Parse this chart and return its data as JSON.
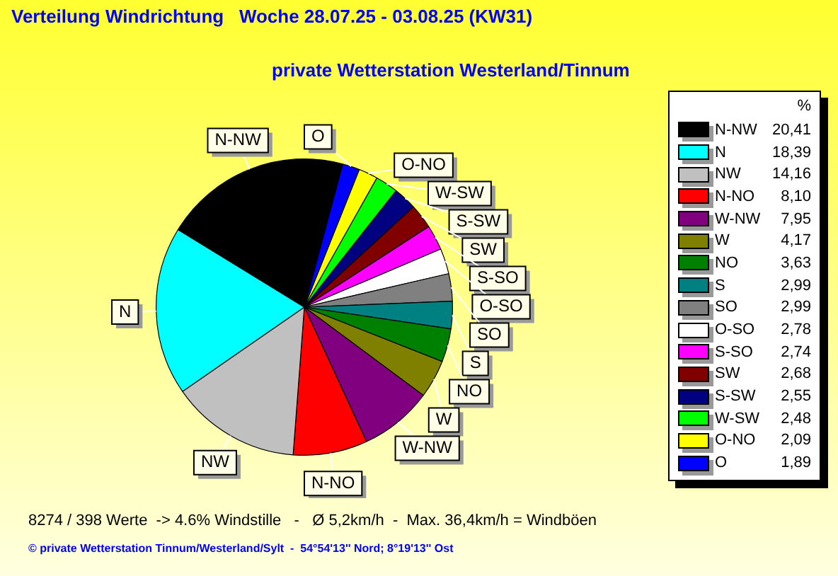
{
  "chart_data": {
    "type": "pie",
    "title": "Verteilung Windrichtung   Woche 28.07.25 - 03.08.25 (KW31)",
    "subtitle": "private Wetterstation Westerland/Tinnum",
    "legend_title": "%",
    "legend": "right",
    "categories": [
      "N-NW",
      "N",
      "NW",
      "N-NO",
      "W-NW",
      "W",
      "NO",
      "S",
      "SO",
      "O-SO",
      "S-SO",
      "SW",
      "S-SW",
      "W-SW",
      "O-NO",
      "O"
    ],
    "values": [
      20.41,
      18.39,
      14.16,
      8.1,
      7.95,
      4.17,
      3.63,
      2.99,
      2.99,
      2.78,
      2.74,
      2.68,
      2.55,
      2.48,
      2.09,
      1.89
    ],
    "value_labels": [
      "20,41",
      "18,39",
      "14,16",
      "8,10",
      "7,95",
      "4,17",
      "3,63",
      "2,99",
      "2,99",
      "2,78",
      "2,74",
      "2,68",
      "2,55",
      "2,48",
      "2,09",
      "1,89"
    ],
    "colors": [
      "#000000",
      "#00ffff",
      "#c0c0c0",
      "#ff0000",
      "#800080",
      "#808000",
      "#008000",
      "#008080",
      "#808080",
      "#ffffff",
      "#ff00ff",
      "#800000",
      "#000080",
      "#00ff00",
      "#ffff00",
      "#0000ff"
    ],
    "annotations": [
      "8274 / 398 Werte  -> 4.6% Windstille   -   Ø 5,2km/h  -  Max. 36,4km/h = Windböen",
      "© private Wetterstation Tinnum/Westerland/Sylt  -  54°54'13'' Nord; 8°19'13'' Ost"
    ]
  }
}
